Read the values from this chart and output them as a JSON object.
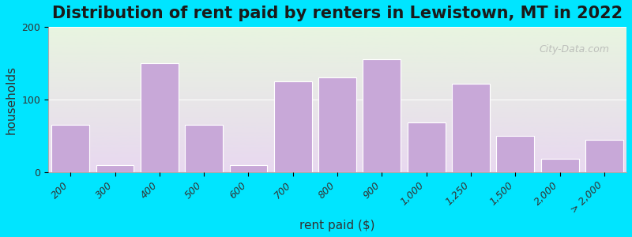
{
  "title": "Distribution of rent paid by renters in Lewistown, MT in 2022",
  "xlabel": "rent paid ($)",
  "ylabel": "households",
  "bar_color": "#c8a8d8",
  "bar_edge_color": "#ffffff",
  "background_outer": "#00e5ff",
  "background_plot_top": "#e8f5e0",
  "background_plot_bottom": "#e8d8f0",
  "categories": [
    "200",
    "300",
    "400",
    "500",
    "600",
    "700",
    "800",
    "900",
    "1,000",
    "1,250",
    "1,500",
    "2,000",
    "> 2,000"
  ],
  "values": [
    65,
    10,
    150,
    65,
    10,
    125,
    130,
    155,
    68,
    122,
    50,
    18,
    45
  ],
  "ylim": [
    0,
    200
  ],
  "yticks": [
    0,
    100,
    200
  ],
  "title_fontsize": 15,
  "axis_label_fontsize": 11,
  "tick_fontsize": 9,
  "watermark_text": "City-Data.com"
}
